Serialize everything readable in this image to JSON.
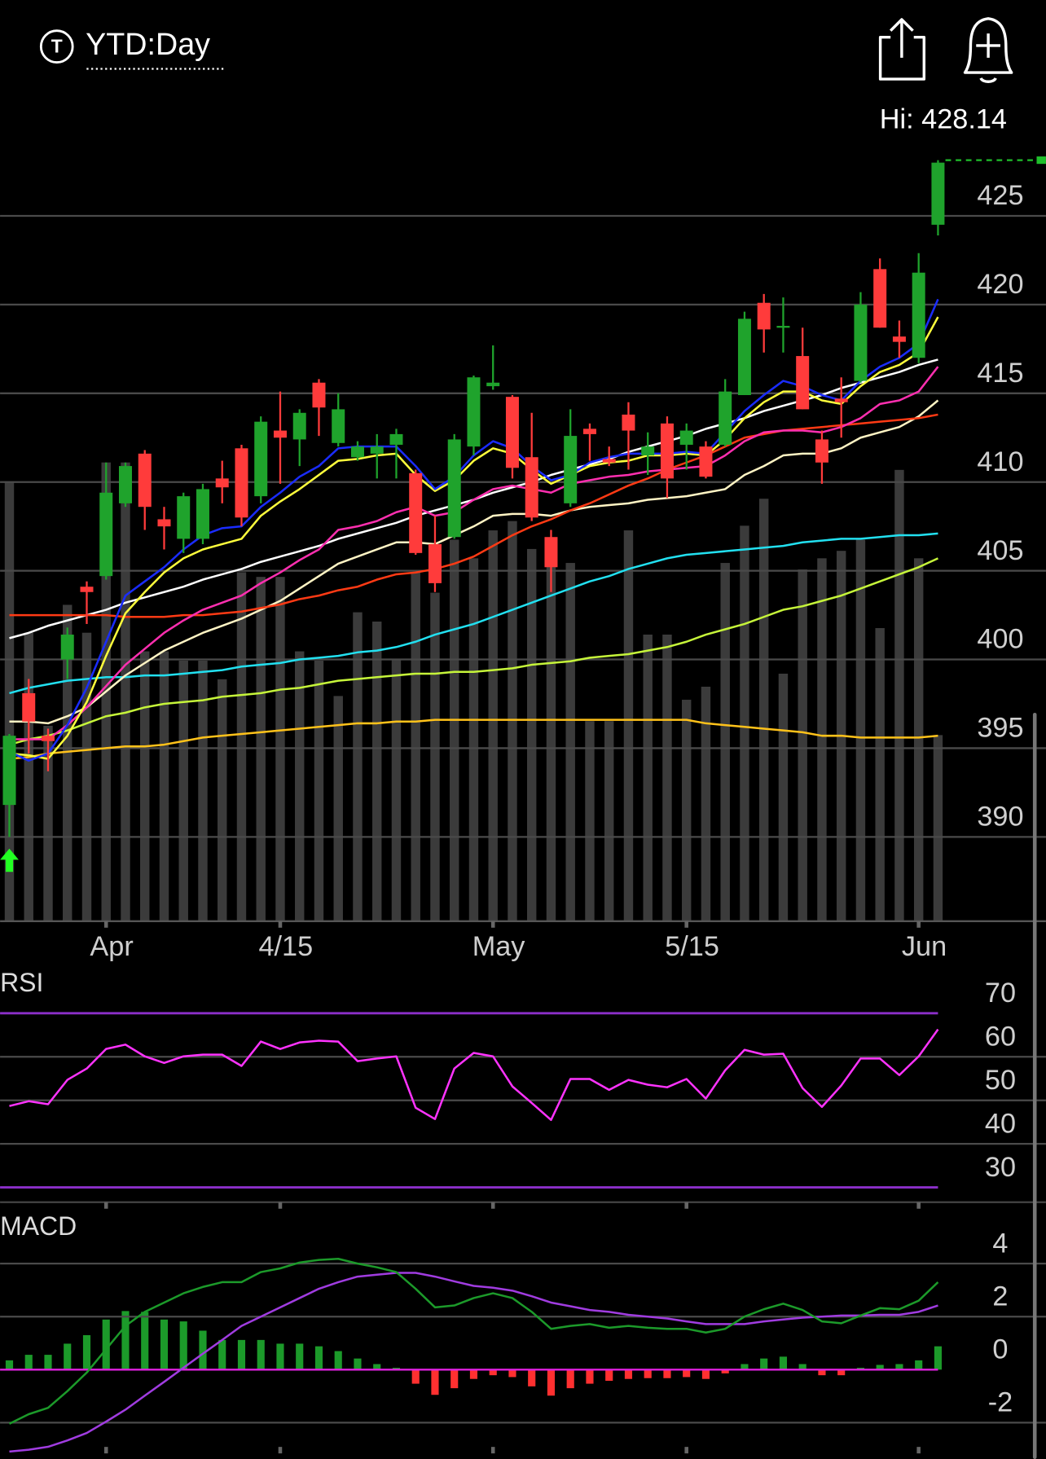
{
  "header": {
    "title": "YTD:Day",
    "high_label": "Hi: 428.14"
  },
  "chart_data": [
    {
      "type": "candlestick",
      "categories": [
        null,
        null,
        null,
        null,
        null,
        "Apr",
        null,
        null,
        null,
        null,
        null,
        null,
        null,
        null,
        "4/15",
        null,
        null,
        null,
        null,
        null,
        null,
        null,
        null,
        null,
        null,
        "May",
        null,
        null,
        null,
        null,
        null,
        null,
        null,
        null,
        null,
        "5/15",
        null,
        null,
        null,
        null,
        null,
        null,
        null,
        null,
        null,
        null,
        null,
        "Jun",
        null
      ],
      "open": [
        391.8,
        398.1,
        395.7,
        400.0,
        404.1,
        404.7,
        408.8,
        411.6,
        407.9,
        406.8,
        406.8,
        410.2,
        411.9,
        409.2,
        412.9,
        412.4,
        415.6,
        412.2,
        411.4,
        411.6,
        412.1,
        410.5,
        406.5,
        406.9,
        412.0,
        415.4,
        414.8,
        411.4,
        406.9,
        408.8,
        413.0,
        411.3,
        413.8,
        411.5,
        413.3,
        412.1,
        412.0,
        412.1,
        414.9,
        420.1,
        418.7,
        417.1,
        412.4,
        414.7,
        415.7,
        422.0,
        418.2,
        417.0,
        424.5
      ],
      "high": [
        395.8,
        398.9,
        396.1,
        401.8,
        404.4,
        411.1,
        411.1,
        411.8,
        408.6,
        409.4,
        409.9,
        411.2,
        412.1,
        413.7,
        415.1,
        414.1,
        415.8,
        415.0,
        412.3,
        412.7,
        413.0,
        410.7,
        408.1,
        412.7,
        416.0,
        417.7,
        414.9,
        413.9,
        407.3,
        414.1,
        413.3,
        412.0,
        414.5,
        412.8,
        413.7,
        413.3,
        412.3,
        415.8,
        419.6,
        420.6,
        420.4,
        418.7,
        412.9,
        415.9,
        420.7,
        422.6,
        419.1,
        422.9,
        428.14
      ],
      "low": [
        390.0,
        394.7,
        393.7,
        398.9,
        402.0,
        404.5,
        408.6,
        407.3,
        406.2,
        406.0,
        406.5,
        408.8,
        407.5,
        408.8,
        409.9,
        410.9,
        412.6,
        412.0,
        411.2,
        410.2,
        410.2,
        405.9,
        403.8,
        406.8,
        411.5,
        415.2,
        410.2,
        407.8,
        403.8,
        408.6,
        411.2,
        410.9,
        410.7,
        410.4,
        409.1,
        410.7,
        410.2,
        412.0,
        414.9,
        417.3,
        417.3,
        414.1,
        409.9,
        412.5,
        415.6,
        418.7,
        417.0,
        416.7,
        423.9
      ],
      "close": [
        395.7,
        396.5,
        395.4,
        401.4,
        403.8,
        409.4,
        410.9,
        408.6,
        407.5,
        409.2,
        409.6,
        409.7,
        408.0,
        413.4,
        412.5,
        413.9,
        414.2,
        414.1,
        412.0,
        412.0,
        412.7,
        406.0,
        404.3,
        412.4,
        415.9,
        415.6,
        410.8,
        408.0,
        405.2,
        412.6,
        412.7,
        411.1,
        412.9,
        412.0,
        410.2,
        412.9,
        410.3,
        415.1,
        419.2,
        418.6,
        418.8,
        414.1,
        411.1,
        414.5,
        420.0,
        418.7,
        417.9,
        421.8,
        428.0
      ],
      "up_color": "#1fa32c",
      "down_color": "#ff3b3b",
      "volume": {
        "color": "#3b3b3b",
        "ylim": [
          0,
          840
        ],
        "values": [
          472,
          310,
          210,
          340,
          310,
          493,
          493,
          290,
          290,
          280,
          280,
          260,
          375,
          370,
          370,
          290,
          280,
          242,
          332,
          322,
          282,
          375,
          353,
          410,
          390,
          420,
          430,
          400,
          410,
          385,
          215,
          215,
          420,
          308,
          308,
          238,
          252,
          385,
          425,
          454,
          266,
          378,
          390,
          398,
          410,
          315,
          485,
          390,
          200
        ]
      },
      "series": [
        {
          "color": "#ffc21a",
          "values": [
            394.4,
            394.5,
            394.7,
            394.8,
            394.9,
            395.0,
            395.1,
            395.1,
            395.2,
            395.4,
            395.6,
            395.7,
            395.8,
            395.9,
            396.0,
            396.1,
            396.2,
            396.3,
            396.4,
            396.4,
            396.5,
            396.5,
            396.6,
            396.6,
            396.6,
            396.6,
            396.6,
            396.6,
            396.6,
            396.6,
            396.6,
            396.6,
            396.6,
            396.6,
            396.6,
            396.6,
            396.4,
            396.3,
            396.2,
            396.1,
            396.0,
            395.9,
            395.7,
            395.7,
            395.6,
            395.6,
            395.6,
            395.6,
            395.7
          ]
        },
        {
          "color": "#c6f53a",
          "values": [
            395.2,
            395.5,
            395.7,
            396.0,
            396.4,
            396.8,
            397.0,
            397.3,
            397.5,
            397.6,
            397.7,
            397.9,
            398.0,
            398.1,
            398.3,
            398.4,
            398.6,
            398.8,
            398.9,
            399.0,
            399.1,
            399.2,
            399.2,
            399.3,
            399.3,
            399.4,
            399.5,
            399.7,
            399.8,
            399.9,
            400.1,
            400.2,
            400.3,
            400.5,
            400.7,
            401.0,
            401.4,
            401.7,
            402.0,
            402.4,
            402.8,
            403.0,
            403.3,
            403.6,
            404.0,
            404.4,
            404.8,
            405.2,
            405.7
          ]
        },
        {
          "color": "#22e0f0",
          "values": [
            398.1,
            398.4,
            398.6,
            398.8,
            398.9,
            399.0,
            399.0,
            399.1,
            399.1,
            399.2,
            399.3,
            399.4,
            399.6,
            399.7,
            399.8,
            400.0,
            400.1,
            400.2,
            400.4,
            400.5,
            400.7,
            401.0,
            401.4,
            401.7,
            402.0,
            402.4,
            402.8,
            403.2,
            403.6,
            404.0,
            404.4,
            404.7,
            405.1,
            405.4,
            405.7,
            405.9,
            406.0,
            406.1,
            406.2,
            406.3,
            406.4,
            406.6,
            406.7,
            406.8,
            406.8,
            406.9,
            407.0,
            407.0,
            407.1
          ]
        },
        {
          "color": "#fff4c4",
          "values": [
            396.5,
            396.5,
            396.4,
            396.8,
            397.3,
            398.2,
            399.1,
            399.8,
            400.5,
            401.0,
            401.5,
            401.9,
            402.3,
            402.8,
            403.3,
            404.0,
            404.7,
            405.4,
            405.8,
            406.2,
            406.6,
            406.6,
            406.5,
            407.0,
            407.5,
            408.1,
            408.2,
            408.2,
            408.1,
            408.4,
            408.6,
            408.7,
            408.8,
            409.0,
            409.1,
            409.2,
            409.4,
            409.6,
            410.4,
            410.9,
            411.5,
            411.6,
            411.6,
            411.9,
            412.5,
            412.8,
            413.1,
            413.7,
            414.6
          ]
        },
        {
          "color": "#ffffff",
          "values": [
            401.2,
            401.5,
            401.9,
            402.2,
            402.5,
            402.8,
            403.2,
            403.5,
            403.8,
            404.1,
            404.5,
            404.8,
            405.1,
            405.5,
            405.8,
            406.1,
            406.4,
            406.8,
            407.1,
            407.4,
            407.7,
            408.1,
            408.4,
            408.7,
            409.0,
            409.4,
            409.7,
            410.0,
            410.4,
            410.7,
            411.0,
            411.3,
            411.7,
            412.0,
            412.3,
            412.6,
            413.0,
            413.3,
            413.6,
            414.0,
            414.3,
            414.6,
            414.9,
            415.3,
            415.6,
            415.9,
            416.2,
            416.6,
            416.9
          ]
        },
        {
          "color": "#ff3a14",
          "values": [
            402.5,
            402.5,
            402.5,
            402.5,
            402.5,
            402.5,
            402.4,
            402.4,
            402.4,
            402.5,
            402.5,
            402.6,
            402.7,
            402.9,
            403.1,
            403.4,
            403.6,
            403.9,
            404.1,
            404.5,
            404.8,
            404.9,
            405.1,
            405.4,
            405.8,
            406.4,
            407.0,
            407.5,
            407.9,
            408.4,
            408.8,
            409.3,
            409.8,
            410.2,
            410.7,
            411.1,
            411.5,
            412.0,
            412.5,
            412.7,
            412.9,
            413.0,
            413.1,
            413.2,
            413.3,
            413.4,
            413.5,
            413.6,
            413.8
          ]
        },
        {
          "color": "#ff2fb0",
          "values": [
            395.5,
            395.5,
            395.5,
            396.3,
            397.3,
            398.5,
            399.7,
            400.6,
            401.5,
            402.2,
            402.8,
            403.2,
            403.6,
            404.3,
            404.9,
            405.6,
            406.2,
            407.3,
            407.5,
            407.8,
            408.3,
            408.6,
            408.1,
            408.3,
            409.0,
            409.6,
            409.8,
            409.6,
            409.4,
            409.9,
            410.1,
            410.3,
            410.4,
            410.6,
            410.7,
            410.8,
            410.9,
            411.5,
            412.3,
            412.8,
            412.9,
            412.9,
            412.8,
            413.1,
            413.6,
            414.4,
            414.6,
            415.1,
            416.5
          ]
        },
        {
          "color": "#ffff3c",
          "values": [
            394.7,
            394.6,
            394.4,
            395.7,
            397.6,
            400.2,
            402.6,
            403.8,
            404.9,
            405.7,
            406.2,
            406.5,
            406.8,
            408.1,
            408.9,
            409.6,
            410.4,
            411.2,
            411.3,
            411.5,
            411.6,
            410.4,
            409.5,
            410.1,
            411.2,
            411.9,
            411.6,
            410.7,
            409.9,
            410.4,
            410.9,
            411.1,
            411.2,
            411.5,
            411.5,
            411.6,
            411.5,
            412.4,
            413.6,
            414.5,
            415.1,
            415.1,
            414.6,
            414.4,
            415.4,
            416.2,
            416.6,
            417.3,
            419.3
          ]
        },
        {
          "color": "#1a2cff",
          "values": [
            394.8,
            394.3,
            394.7,
            396.3,
            398.4,
            401.0,
            403.6,
            404.4,
            405.2,
            406.2,
            407.0,
            407.4,
            407.5,
            408.6,
            409.4,
            410.3,
            410.9,
            411.9,
            412.0,
            412.0,
            412.0,
            410.9,
            409.6,
            410.3,
            411.5,
            412.3,
            411.9,
            410.9,
            410.1,
            410.4,
            411.1,
            411.4,
            411.6,
            411.6,
            411.6,
            411.7,
            411.6,
            412.8,
            414.0,
            414.9,
            415.7,
            415.4,
            414.9,
            414.6,
            415.7,
            416.5,
            417.0,
            417.8,
            420.3
          ]
        }
      ],
      "ylim": [
        385.25,
        429.3
      ],
      "yticks": [
        390,
        395,
        400,
        405,
        410,
        415,
        420,
        425
      ],
      "grid": true,
      "high_line_color": "#1fbf2c"
    },
    {
      "type": "line",
      "title": "RSI",
      "color": "#ff33ff",
      "values": [
        48.7,
        49.8,
        49.1,
        54.7,
        57.3,
        61.8,
        62.8,
        60.1,
        58.6,
        60.1,
        60.5,
        60.5,
        57.9,
        63.5,
        61.8,
        63.3,
        63.7,
        63.5,
        59.0,
        59.6,
        60.1,
        48.3,
        45.7,
        57.3,
        60.9,
        60.1,
        53.2,
        49.4,
        45.5,
        54.9,
        54.9,
        52.4,
        54.7,
        53.6,
        53.0,
        54.9,
        50.4,
        56.9,
        61.6,
        60.5,
        60.7,
        52.8,
        48.5,
        53.4,
        59.6,
        59.6,
        55.8,
        60.1,
        66.3
      ],
      "ylim": [
        26.6,
        79.4
      ],
      "yticks": [
        30,
        40,
        50,
        60,
        70
      ],
      "bands": [
        30,
        70
      ],
      "band_color": "#8b2fc9",
      "grid": true
    },
    {
      "type": "macd",
      "title": "MACD",
      "macd": {
        "color": "#1c9a2a",
        "values": [
          -2.04,
          -1.68,
          -1.44,
          -0.81,
          -0.11,
          0.77,
          1.65,
          2.18,
          2.53,
          2.88,
          3.12,
          3.3,
          3.3,
          3.68,
          3.82,
          4.04,
          4.14,
          4.18,
          4.0,
          3.86,
          3.68,
          3.05,
          2.35,
          2.42,
          2.7,
          2.88,
          2.7,
          2.18,
          1.54,
          1.65,
          1.72,
          1.58,
          1.65,
          1.58,
          1.54,
          1.54,
          1.4,
          1.54,
          2.0,
          2.28,
          2.49,
          2.25,
          1.82,
          1.75,
          2.04,
          2.32,
          2.28,
          2.6,
          3.3
        ]
      },
      "signal": {
        "color": "#a03ce0",
        "values": [
          -3.09,
          -3.02,
          -2.91,
          -2.67,
          -2.39,
          -1.96,
          -1.51,
          -0.98,
          -0.46,
          0.07,
          0.6,
          1.12,
          1.65,
          2.0,
          2.35,
          2.7,
          3.05,
          3.3,
          3.51,
          3.58,
          3.65,
          3.65,
          3.51,
          3.33,
          3.16,
          3.09,
          2.98,
          2.77,
          2.53,
          2.39,
          2.25,
          2.18,
          2.07,
          2.0,
          1.93,
          1.82,
          1.72,
          1.72,
          1.72,
          1.82,
          1.89,
          1.96,
          2.0,
          2.04,
          2.04,
          2.07,
          2.07,
          2.18,
          2.42
        ]
      },
      "histogram": {
        "up_color": "#1c9a2a",
        "down_color": "#ff3030",
        "values": [
          0.35,
          0.56,
          0.56,
          0.98,
          1.3,
          1.89,
          2.21,
          2.18,
          1.89,
          1.82,
          1.47,
          1.12,
          1.12,
          1.12,
          0.98,
          0.98,
          0.88,
          0.7,
          0.42,
          0.21,
          0.07,
          -0.53,
          -0.95,
          -0.7,
          -0.35,
          -0.21,
          -0.28,
          -0.63,
          -0.98,
          -0.7,
          -0.53,
          -0.42,
          -0.35,
          -0.32,
          -0.32,
          -0.28,
          -0.35,
          -0.14,
          0.21,
          0.42,
          0.49,
          0.21,
          -0.21,
          -0.21,
          0.07,
          0.18,
          0.21,
          0.35,
          0.88
        ]
      },
      "zero_color": "#e020e0",
      "ylim": [
        -3.37,
        5.86
      ],
      "yticks": [
        -2,
        0,
        2,
        4
      ],
      "grid": true
    }
  ]
}
